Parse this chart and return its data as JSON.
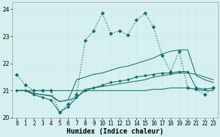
{
  "xlabel": "Humidex (Indice chaleur)",
  "bg_color": "#d6f0f0",
  "grid_color": "#c8e8e8",
  "line_color": "#1a6b6b",
  "xlim": [
    -0.5,
    23.5
  ],
  "ylim": [
    20.0,
    24.25
  ],
  "yticks": [
    20,
    21,
    22,
    23,
    24
  ],
  "xticks": [
    0,
    1,
    2,
    3,
    4,
    5,
    6,
    7,
    8,
    9,
    10,
    11,
    12,
    13,
    14,
    15,
    16,
    17,
    18,
    19,
    20,
    21,
    22,
    23
  ],
  "series": [
    {
      "x": [
        0,
        1,
        2,
        3,
        4,
        5,
        6,
        7,
        8,
        9,
        10,
        11,
        12,
        13,
        14,
        15,
        16,
        17,
        18,
        19,
        20,
        21,
        22,
        23
      ],
      "y": [
        21.6,
        21.2,
        21.0,
        21.0,
        21.0,
        20.2,
        20.5,
        20.85,
        22.85,
        23.2,
        23.85,
        23.1,
        23.2,
        23.05,
        23.6,
        23.85,
        23.35,
        22.3,
        21.7,
        22.45,
        21.1,
        21.05,
        20.85,
        21.1
      ],
      "linestyle": "dotted",
      "marker": "D",
      "markersize": 2.5,
      "linewidth": 1.0
    },
    {
      "x": [
        0,
        1,
        2,
        3,
        4,
        5,
        6,
        7,
        8,
        9,
        10,
        11,
        12,
        13,
        14,
        15,
        16,
        17,
        18,
        19,
        20,
        21,
        22,
        23
      ],
      "y": [
        21.0,
        21.0,
        21.0,
        21.0,
        21.0,
        21.0,
        21.0,
        21.0,
        21.0,
        21.0,
        21.0,
        21.0,
        21.0,
        21.0,
        21.0,
        21.0,
        21.05,
        21.05,
        21.1,
        21.1,
        21.1,
        21.05,
        21.0,
        21.0
      ],
      "linestyle": "solid",
      "marker": null,
      "markersize": 0,
      "linewidth": 0.8
    },
    {
      "x": [
        0,
        1,
        2,
        3,
        4,
        5,
        6,
        7,
        8,
        9,
        10,
        11,
        12,
        13,
        14,
        15,
        16,
        17,
        18,
        19,
        20,
        21,
        22,
        23
      ],
      "y": [
        21.0,
        21.0,
        20.9,
        20.85,
        20.8,
        20.6,
        20.65,
        20.75,
        21.05,
        21.1,
        21.15,
        21.2,
        21.25,
        21.3,
        21.35,
        21.4,
        21.5,
        21.55,
        21.6,
        21.65,
        21.65,
        21.6,
        21.5,
        21.4
      ],
      "linestyle": "solid",
      "marker": null,
      "markersize": 0,
      "linewidth": 0.8
    },
    {
      "x": [
        0,
        1,
        2,
        3,
        4,
        5,
        6,
        7,
        8,
        9,
        10,
        11,
        12,
        13,
        14,
        15,
        16,
        17,
        18,
        19,
        20,
        21,
        22,
        23
      ],
      "y": [
        21.0,
        21.0,
        20.9,
        20.85,
        20.82,
        20.6,
        20.65,
        21.4,
        21.5,
        21.6,
        21.65,
        21.75,
        21.85,
        21.9,
        22.0,
        22.1,
        22.2,
        22.35,
        22.45,
        22.5,
        22.5,
        21.55,
        21.4,
        21.3
      ],
      "linestyle": "solid",
      "marker": null,
      "markersize": 0,
      "linewidth": 0.8
    },
    {
      "x": [
        0,
        1,
        2,
        3,
        4,
        5,
        6,
        7,
        8,
        9,
        10,
        11,
        12,
        13,
        14,
        15,
        16,
        17,
        18,
        19,
        20,
        21,
        22,
        23
      ],
      "y": [
        21.0,
        21.0,
        20.85,
        20.75,
        20.65,
        20.2,
        20.4,
        20.75,
        21.0,
        21.1,
        21.2,
        21.3,
        21.35,
        21.4,
        21.5,
        21.55,
        21.6,
        21.65,
        21.65,
        21.7,
        21.7,
        21.1,
        21.05,
        21.1
      ],
      "linestyle": "solid",
      "marker": "D",
      "markersize": 2.0,
      "linewidth": 0.8
    }
  ]
}
